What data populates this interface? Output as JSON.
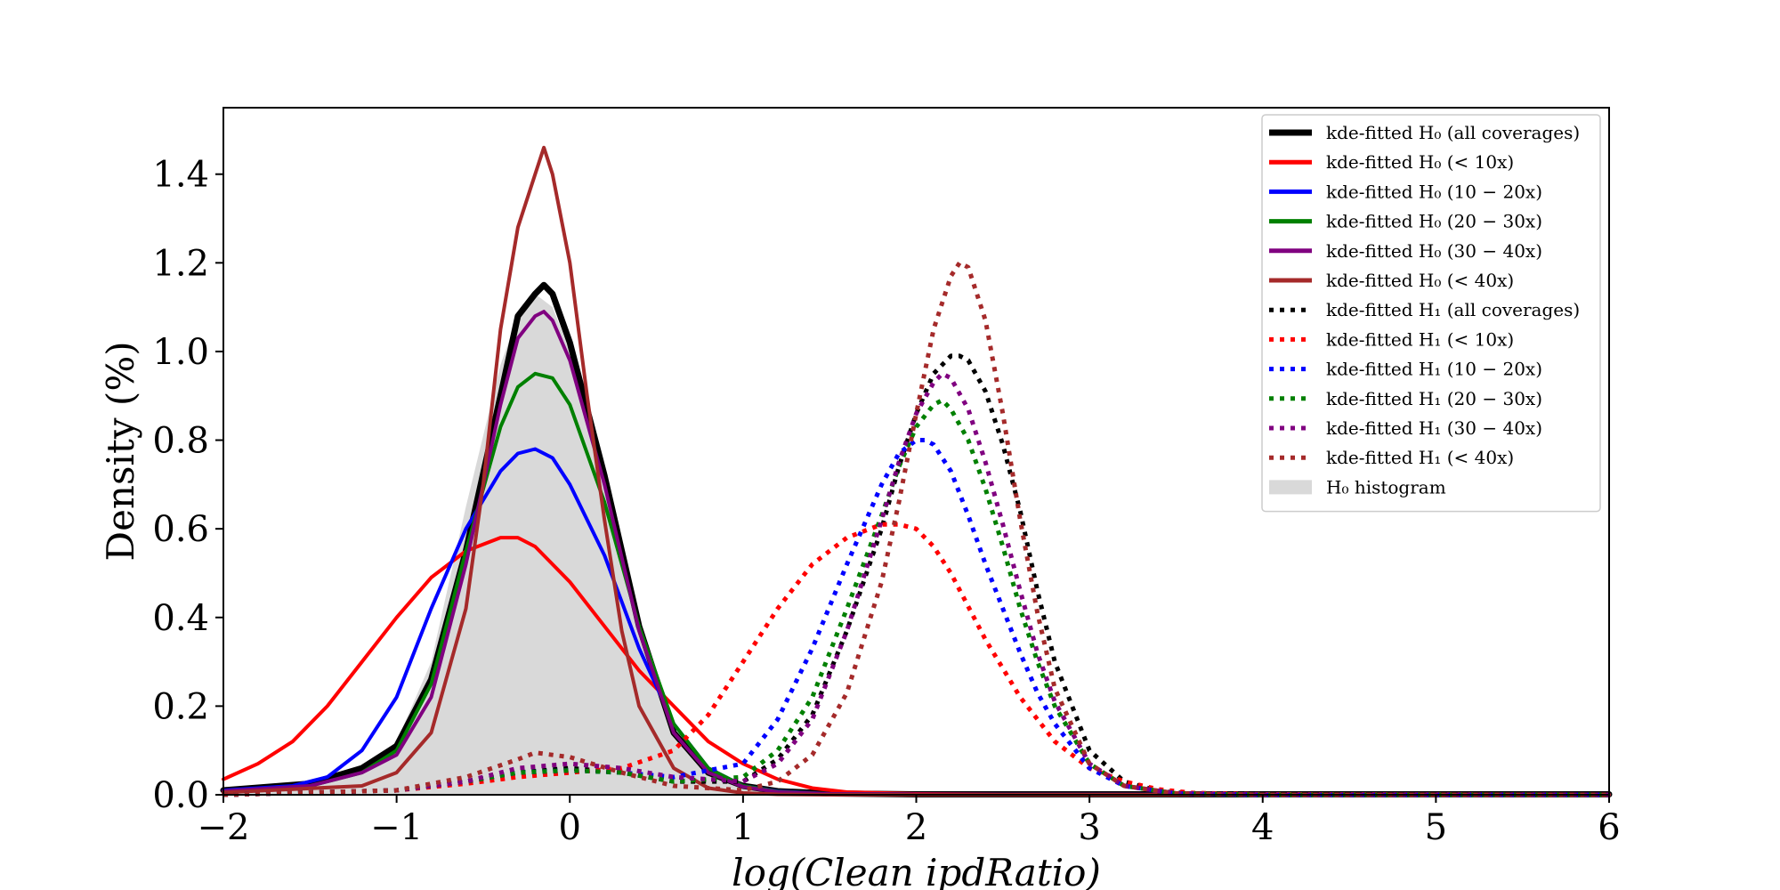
{
  "chart_data": {
    "type": "line",
    "xlabel": "log(Clean ipdRatio)",
    "ylabel": "Density (%)",
    "xlim": [
      -2,
      6
    ],
    "ylim": [
      0,
      1.55
    ],
    "xticks": [
      -2,
      -1,
      0,
      1,
      2,
      3,
      4,
      5,
      6
    ],
    "xtick_labels": [
      "−2",
      "−1",
      "0",
      "1",
      "2",
      "3",
      "4",
      "5",
      "6"
    ],
    "yticks": [
      0.0,
      0.2,
      0.4,
      0.6,
      0.8,
      1.0,
      1.2,
      1.4
    ],
    "ytick_labels": [
      "0.0",
      "0.2",
      "0.4",
      "0.6",
      "0.8",
      "1.0",
      "1.2",
      "1.4"
    ],
    "grid": false,
    "legend_position": "top-right",
    "histogram": {
      "name": "H0 histogram",
      "legend_label": "H₀ histogram",
      "color": "#d9d9d9",
      "x": [
        -2.0,
        -1.8,
        -1.6,
        -1.4,
        -1.2,
        -1.0,
        -0.8,
        -0.6,
        -0.4,
        -0.3,
        -0.2,
        -0.1,
        0.0,
        0.2,
        0.4,
        0.6,
        0.8,
        1.0,
        1.2,
        1.4
      ],
      "y": [
        0.005,
        0.01,
        0.015,
        0.03,
        0.06,
        0.12,
        0.3,
        0.65,
        0.97,
        1.08,
        1.13,
        1.1,
        1.0,
        0.72,
        0.38,
        0.14,
        0.05,
        0.015,
        0.005,
        0.0
      ]
    },
    "series": [
      {
        "name": "kde-fitted H0 (all coverages)",
        "hypothesis": "H0",
        "condition": "all coverages",
        "color": "#000000",
        "style": "solid",
        "width": 7,
        "x": [
          -2.0,
          -1.5,
          -1.2,
          -1.0,
          -0.8,
          -0.6,
          -0.4,
          -0.3,
          -0.2,
          -0.15,
          -0.1,
          0.0,
          0.2,
          0.4,
          0.6,
          0.8,
          1.0,
          1.2,
          1.5,
          2.0,
          6.0
        ],
        "y": [
          0.01,
          0.025,
          0.06,
          0.11,
          0.26,
          0.55,
          0.9,
          1.08,
          1.13,
          1.15,
          1.13,
          1.02,
          0.72,
          0.38,
          0.14,
          0.05,
          0.02,
          0.008,
          0.003,
          0.001,
          0.001
        ]
      },
      {
        "name": "kde-fitted H0 (< 10x)",
        "hypothesis": "H0",
        "condition": "< 10x",
        "color": "#ff0000",
        "style": "solid",
        "width": 4,
        "x": [
          -2.0,
          -1.8,
          -1.6,
          -1.4,
          -1.2,
          -1.0,
          -0.8,
          -0.6,
          -0.4,
          -0.3,
          -0.2,
          -0.1,
          0.0,
          0.2,
          0.4,
          0.6,
          0.8,
          1.0,
          1.2,
          1.4,
          1.6,
          2.0,
          2.5,
          6.0
        ],
        "y": [
          0.035,
          0.07,
          0.12,
          0.2,
          0.3,
          0.4,
          0.49,
          0.55,
          0.58,
          0.58,
          0.56,
          0.52,
          0.48,
          0.38,
          0.28,
          0.2,
          0.12,
          0.07,
          0.035,
          0.015,
          0.006,
          0.002,
          0.001,
          0.0
        ]
      },
      {
        "name": "kde-fitted H0 (10 − 20x)",
        "hypothesis": "H0",
        "condition": "10 − 20x",
        "color": "#0000ff",
        "style": "solid",
        "width": 4,
        "x": [
          -2.0,
          -1.6,
          -1.4,
          -1.2,
          -1.0,
          -0.8,
          -0.6,
          -0.4,
          -0.3,
          -0.2,
          -0.1,
          0.0,
          0.2,
          0.4,
          0.6,
          0.8,
          1.0,
          1.2,
          1.5,
          2.0,
          6.0
        ],
        "y": [
          0.01,
          0.02,
          0.04,
          0.1,
          0.22,
          0.42,
          0.6,
          0.73,
          0.77,
          0.78,
          0.76,
          0.7,
          0.54,
          0.33,
          0.16,
          0.06,
          0.02,
          0.008,
          0.002,
          0.001,
          0.0
        ]
      },
      {
        "name": "kde-fitted H0 (20 − 30x)",
        "hypothesis": "H0",
        "condition": "20 − 30x",
        "color": "#008000",
        "style": "solid",
        "width": 4,
        "x": [
          -2.0,
          -1.5,
          -1.2,
          -1.0,
          -0.8,
          -0.6,
          -0.4,
          -0.3,
          -0.2,
          -0.1,
          0.0,
          0.2,
          0.4,
          0.6,
          0.8,
          1.0,
          1.2,
          1.5,
          2.0,
          6.0
        ],
        "y": [
          0.008,
          0.02,
          0.05,
          0.1,
          0.25,
          0.55,
          0.83,
          0.92,
          0.95,
          0.94,
          0.88,
          0.66,
          0.38,
          0.16,
          0.06,
          0.02,
          0.007,
          0.002,
          0.001,
          0.0
        ]
      },
      {
        "name": "kde-fitted H0 (30 − 40x)",
        "hypothesis": "H0",
        "condition": "30 − 40x",
        "color": "#800080",
        "style": "solid",
        "width": 4,
        "x": [
          -2.0,
          -1.5,
          -1.2,
          -1.0,
          -0.8,
          -0.6,
          -0.4,
          -0.3,
          -0.2,
          -0.15,
          -0.1,
          0.0,
          0.2,
          0.4,
          0.6,
          0.8,
          1.0,
          1.2,
          1.5,
          2.0,
          6.0
        ],
        "y": [
          0.008,
          0.02,
          0.05,
          0.09,
          0.22,
          0.52,
          0.88,
          1.03,
          1.08,
          1.09,
          1.07,
          0.98,
          0.7,
          0.37,
          0.14,
          0.05,
          0.018,
          0.006,
          0.002,
          0.001,
          0.0
        ]
      },
      {
        "name": "kde-fitted H0 (< 40x)",
        "hypothesis": "H0",
        "condition": "< 40x",
        "color": "#a52a2a",
        "style": "solid",
        "width": 4,
        "x": [
          -2.0,
          -1.2,
          -1.0,
          -0.8,
          -0.6,
          -0.5,
          -0.4,
          -0.3,
          -0.2,
          -0.15,
          -0.1,
          0.0,
          0.1,
          0.2,
          0.3,
          0.4,
          0.6,
          0.8,
          1.0,
          1.2,
          1.5,
          6.0
        ],
        "y": [
          0.005,
          0.02,
          0.05,
          0.14,
          0.42,
          0.7,
          1.05,
          1.28,
          1.4,
          1.46,
          1.4,
          1.2,
          0.9,
          0.62,
          0.37,
          0.2,
          0.06,
          0.015,
          0.004,
          0.001,
          0.0,
          0.0
        ]
      },
      {
        "name": "kde-fitted H1 (all coverages)",
        "hypothesis": "H1",
        "condition": "all coverages",
        "color": "#000000",
        "style": "dotted",
        "width": 5,
        "x": [
          -2.0,
          -1.0,
          -0.6,
          -0.3,
          0.0,
          0.3,
          0.6,
          1.0,
          1.2,
          1.4,
          1.6,
          1.8,
          1.9,
          2.0,
          2.1,
          2.2,
          2.25,
          2.3,
          2.4,
          2.5,
          2.6,
          2.7,
          2.8,
          3.0,
          3.2,
          3.4,
          3.6,
          4.0,
          6.0
        ],
        "y": [
          0.0,
          0.01,
          0.03,
          0.05,
          0.06,
          0.05,
          0.03,
          0.03,
          0.08,
          0.18,
          0.37,
          0.6,
          0.74,
          0.86,
          0.95,
          0.99,
          0.99,
          0.98,
          0.91,
          0.79,
          0.64,
          0.46,
          0.3,
          0.1,
          0.03,
          0.008,
          0.002,
          0.0,
          0.0
        ]
      },
      {
        "name": "kde-fitted H1 (< 10x)",
        "hypothesis": "H1",
        "condition": "< 10x",
        "color": "#ff0000",
        "style": "dotted",
        "width": 5,
        "x": [
          -2.0,
          -1.0,
          -0.6,
          -0.3,
          0.0,
          0.3,
          0.6,
          0.8,
          1.0,
          1.2,
          1.4,
          1.6,
          1.8,
          1.9,
          2.0,
          2.1,
          2.2,
          2.4,
          2.6,
          2.8,
          3.0,
          3.2,
          3.4,
          3.6,
          4.0,
          6.0
        ],
        "y": [
          0.0,
          0.01,
          0.025,
          0.04,
          0.05,
          0.06,
          0.1,
          0.18,
          0.3,
          0.42,
          0.52,
          0.58,
          0.61,
          0.61,
          0.6,
          0.56,
          0.5,
          0.35,
          0.22,
          0.12,
          0.06,
          0.03,
          0.012,
          0.004,
          0.001,
          0.0
        ]
      },
      {
        "name": "kde-fitted H1 (10 − 20x)",
        "hypothesis": "H1",
        "condition": "10 − 20x",
        "color": "#0000ff",
        "style": "dotted",
        "width": 5,
        "x": [
          -2.0,
          -1.0,
          -0.6,
          -0.3,
          0.0,
          0.3,
          0.6,
          1.0,
          1.2,
          1.4,
          1.6,
          1.8,
          1.9,
          2.0,
          2.05,
          2.1,
          2.2,
          2.3,
          2.4,
          2.5,
          2.6,
          2.7,
          2.8,
          3.0,
          3.2,
          3.5,
          4.0,
          6.0
        ],
        "y": [
          0.0,
          0.01,
          0.03,
          0.05,
          0.055,
          0.05,
          0.04,
          0.07,
          0.17,
          0.33,
          0.52,
          0.7,
          0.77,
          0.8,
          0.8,
          0.79,
          0.73,
          0.63,
          0.52,
          0.42,
          0.32,
          0.23,
          0.16,
          0.06,
          0.02,
          0.003,
          0.0,
          0.0
        ]
      },
      {
        "name": "kde-fitted H1 (20 − 30x)",
        "hypothesis": "H1",
        "condition": "20 − 30x",
        "color": "#008000",
        "style": "dotted",
        "width": 5,
        "x": [
          -2.0,
          -1.0,
          -0.6,
          -0.3,
          0.0,
          0.3,
          0.6,
          1.0,
          1.2,
          1.4,
          1.6,
          1.8,
          1.9,
          2.0,
          2.1,
          2.15,
          2.2,
          2.3,
          2.4,
          2.5,
          2.6,
          2.7,
          2.8,
          3.0,
          3.2,
          3.5,
          4.0,
          6.0
        ],
        "y": [
          0.0,
          0.01,
          0.03,
          0.05,
          0.055,
          0.05,
          0.03,
          0.04,
          0.1,
          0.22,
          0.42,
          0.63,
          0.74,
          0.83,
          0.88,
          0.89,
          0.87,
          0.8,
          0.69,
          0.56,
          0.42,
          0.3,
          0.2,
          0.07,
          0.02,
          0.003,
          0.0,
          0.0
        ]
      },
      {
        "name": "kde-fitted H1 (30 − 40x)",
        "hypothesis": "H1",
        "condition": "30 − 40x",
        "color": "#800080",
        "style": "dotted",
        "width": 5,
        "x": [
          -2.0,
          -1.0,
          -0.6,
          -0.3,
          0.0,
          0.3,
          0.6,
          1.0,
          1.2,
          1.4,
          1.6,
          1.8,
          1.9,
          2.0,
          2.1,
          2.15,
          2.2,
          2.3,
          2.4,
          2.5,
          2.6,
          2.7,
          2.8,
          3.0,
          3.2,
          3.5,
          4.0,
          6.0
        ],
        "y": [
          0.0,
          0.01,
          0.03,
          0.06,
          0.07,
          0.06,
          0.04,
          0.03,
          0.07,
          0.17,
          0.37,
          0.62,
          0.75,
          0.86,
          0.93,
          0.95,
          0.94,
          0.87,
          0.75,
          0.61,
          0.46,
          0.32,
          0.21,
          0.07,
          0.02,
          0.003,
          0.0,
          0.0
        ]
      },
      {
        "name": "kde-fitted H1 (< 40x)",
        "hypothesis": "H1",
        "condition": "< 40x",
        "color": "#a52a2a",
        "style": "dotted",
        "width": 5,
        "x": [
          -2.0,
          -1.0,
          -0.6,
          -0.3,
          -0.2,
          0.0,
          0.3,
          0.6,
          1.0,
          1.2,
          1.4,
          1.6,
          1.8,
          1.9,
          2.0,
          2.1,
          2.2,
          2.25,
          2.3,
          2.4,
          2.5,
          2.6,
          2.7,
          2.8,
          3.0,
          3.2,
          3.5,
          4.0,
          6.0
        ],
        "y": [
          0.0,
          0.01,
          0.04,
          0.08,
          0.095,
          0.085,
          0.05,
          0.02,
          0.01,
          0.03,
          0.09,
          0.23,
          0.48,
          0.66,
          0.86,
          1.05,
          1.17,
          1.2,
          1.19,
          1.07,
          0.86,
          0.62,
          0.41,
          0.24,
          0.07,
          0.02,
          0.003,
          0.0,
          0.0
        ]
      }
    ]
  }
}
